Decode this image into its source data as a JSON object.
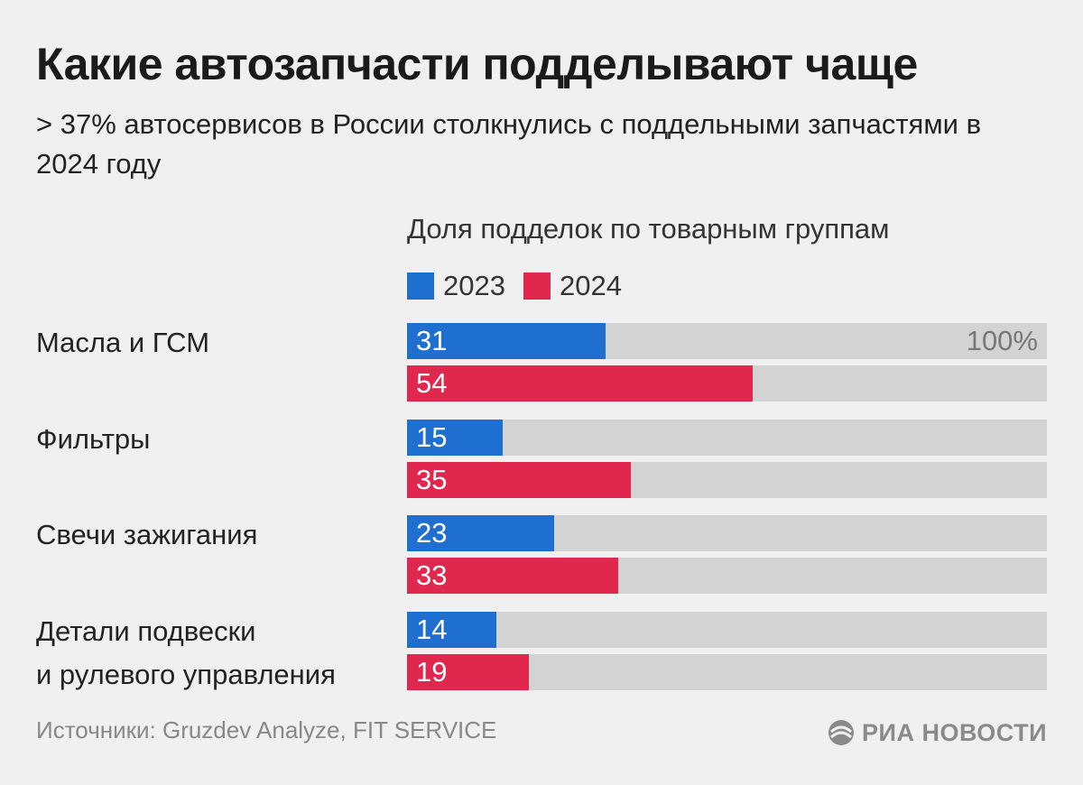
{
  "title": "Какие автозапчасти подделывают чаще",
  "subtitle": "> 37% автосервисов в России столкнулись с поддельными запчастями в 2024 году",
  "chart_data": {
    "type": "bar",
    "orientation": "horizontal",
    "title": "Доля подделок по товарным группам",
    "categories": [
      "Масла и ГСМ",
      "Фильтры",
      "Свечи зажигания",
      "Детали подвески и рулевого управления"
    ],
    "category_lines": [
      [
        "Масла и ГСМ"
      ],
      [
        "Фильтры"
      ],
      [
        "Свечи зажигания"
      ],
      [
        "Детали подвески",
        "и рулевого управления"
      ]
    ],
    "series": [
      {
        "name": "2023",
        "values": [
          31,
          15,
          23,
          14
        ],
        "color": "#1f6fd1"
      },
      {
        "name": "2024",
        "values": [
          54,
          35,
          33,
          19
        ],
        "color": "#e0284f"
      }
    ],
    "max_value": 100,
    "max_label": "100%",
    "track_color": "#d3d3d3"
  },
  "source": "Источники: Gruzdev Analyze, FIT SERVICE",
  "brand": "РИА НОВОСТИ",
  "brand_icon": "ria-logo-icon"
}
